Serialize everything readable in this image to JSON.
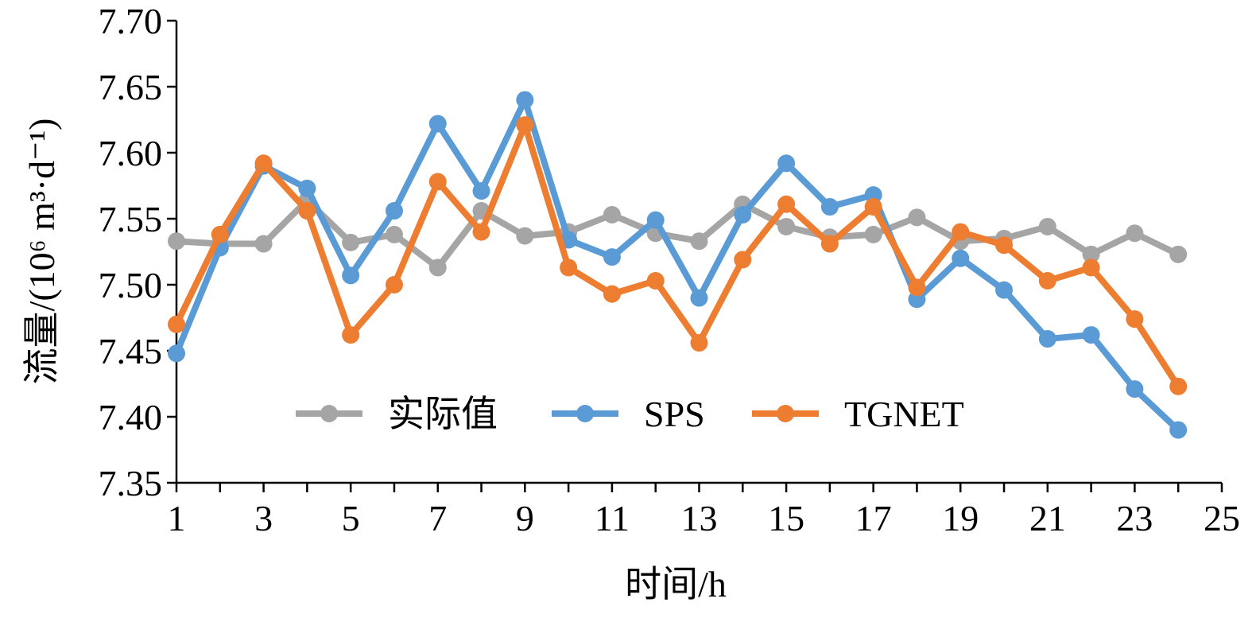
{
  "chart_data": {
    "type": "line",
    "xlabel": "时间/h",
    "ylabel": "流量/(10⁶ m³·d⁻¹)",
    "xlim": [
      1,
      25
    ],
    "ylim": [
      7.35,
      7.7
    ],
    "x_ticks": [
      "1",
      "3",
      "5",
      "7",
      "9",
      "11",
      "13",
      "15",
      "17",
      "19",
      "21",
      "23",
      "25"
    ],
    "y_ticks": [
      "7.35",
      "7.40",
      "7.45",
      "7.50",
      "7.55",
      "7.60",
      "7.65",
      "7.70"
    ],
    "x": [
      1,
      2,
      3,
      4,
      5,
      6,
      7,
      8,
      9,
      10,
      11,
      12,
      13,
      14,
      15,
      16,
      17,
      18,
      19,
      20,
      21,
      22,
      23,
      24
    ],
    "legend_position": "bottom-center",
    "grid": false,
    "series": [
      {
        "name": "实际值",
        "color": "#a5a5a5",
        "values": [
          7.533,
          7.531,
          7.531,
          7.564,
          7.532,
          7.538,
          7.513,
          7.556,
          7.537,
          7.54,
          7.553,
          7.539,
          7.533,
          7.561,
          7.544,
          7.536,
          7.538,
          7.551,
          7.533,
          7.535,
          7.544,
          7.523,
          7.539,
          7.523
        ]
      },
      {
        "name": "SPS",
        "color": "#5b9bd5",
        "values": [
          7.448,
          7.528,
          7.59,
          7.573,
          7.507,
          7.556,
          7.622,
          7.571,
          7.64,
          7.534,
          7.521,
          7.549,
          7.49,
          7.553,
          7.592,
          7.559,
          7.568,
          7.489,
          7.52,
          7.496,
          7.459,
          7.462,
          7.421,
          7.39
        ]
      },
      {
        "name": "TGNET",
        "color": "#ed7d31",
        "values": [
          7.47,
          7.538,
          7.592,
          7.556,
          7.462,
          7.5,
          7.578,
          7.54,
          7.621,
          7.513,
          7.493,
          7.503,
          7.456,
          7.519,
          7.561,
          7.531,
          7.559,
          7.498,
          7.54,
          7.53,
          7.503,
          7.513,
          7.474,
          7.423
        ]
      }
    ]
  }
}
